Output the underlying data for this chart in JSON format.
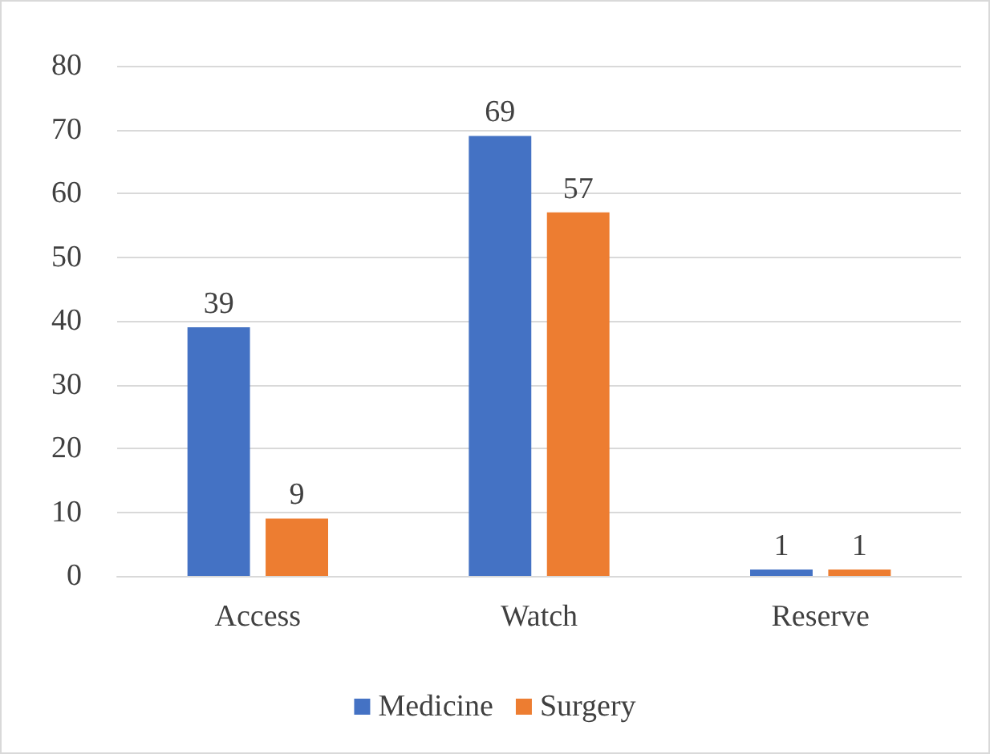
{
  "chart_data": {
    "type": "bar",
    "categories": [
      "Access",
      "Watch",
      "Reserve"
    ],
    "series": [
      {
        "name": "Medicine",
        "color": "#4472c4",
        "values": [
          39,
          69,
          1
        ]
      },
      {
        "name": "Surgery",
        "color": "#ed7d31",
        "values": [
          9,
          57,
          1
        ]
      }
    ],
    "ylim": [
      0,
      80
    ],
    "yticks": [
      0,
      10,
      20,
      30,
      40,
      50,
      60,
      70,
      80
    ],
    "grid": "y",
    "legend": "bottom",
    "data_labels": true
  }
}
